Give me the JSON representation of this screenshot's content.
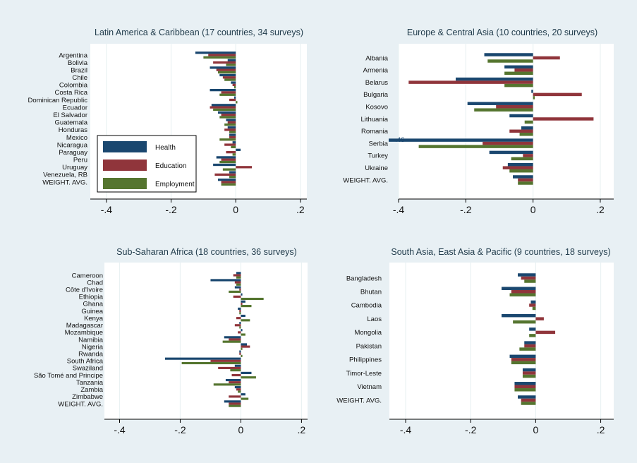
{
  "colors": {
    "health": "#1a476f",
    "education": "#90353b",
    "employment": "#55752f",
    "background": "#e8f0f4",
    "plot": "#ffffff",
    "grid": "#eaf2f3"
  },
  "legend": [
    {
      "label": "Health",
      "color": "#1a476f"
    },
    {
      "label": "Education",
      "color": "#90353b"
    },
    {
      "label": "Employment",
      "color": "#55752f"
    }
  ],
  "chart_data": [
    {
      "type": "bar",
      "orientation": "horizontal",
      "title": "Latin America & Caribbean (17 countries, 34 surveys)",
      "xlim": [
        -0.45,
        0.22
      ],
      "x_ticks": [
        -0.4,
        -0.2,
        0,
        0.2
      ],
      "x_tick_labels": [
        "-.4",
        "-.2",
        "0",
        ".2"
      ],
      "grid": true,
      "legend_position": "lower-left",
      "categories": [
        "Argentina",
        "Bolivia",
        "Brazil",
        "Chile",
        "Colombia",
        "Costa Rica",
        "Dominican Republic",
        "Ecuador",
        "El Salvador",
        "Guatemala",
        "Honduras",
        "Mexico",
        "Nicaragua",
        "Paraguay",
        "Peru",
        "Uruguay",
        "Venezuela, RB",
        "WEIGHT. AVG."
      ],
      "series": [
        {
          "name": "Health",
          "values": [
            -0.125,
            -0.025,
            -0.08,
            -0.05,
            -0.015,
            -0.08,
            -0.005,
            -0.075,
            -0.055,
            -0.03,
            -0.025,
            -0.02,
            -0.01,
            0.015,
            -0.06,
            -0.07,
            -0.02,
            -0.055
          ]
        },
        {
          "name": "Education",
          "values": [
            -0.085,
            -0.07,
            -0.06,
            -0.04,
            -0.01,
            -0.045,
            -0.02,
            -0.08,
            -0.045,
            -0.025,
            -0.035,
            -0.02,
            -0.035,
            -0.03,
            -0.045,
            0.05,
            -0.065,
            -0.045
          ]
        },
        {
          "name": "Employment",
          "values": [
            -0.1,
            -0.03,
            -0.055,
            -0.035,
            -0.005,
            -0.05,
            0.005,
            -0.07,
            -0.05,
            -0.035,
            -0.02,
            -0.05,
            -0.015,
            -0.01,
            -0.05,
            -0.04,
            -0.02,
            -0.045
          ]
        }
      ]
    },
    {
      "type": "bar",
      "orientation": "horizontal",
      "title": "Europe & Central Asia (10 countries, 20 surveys)",
      "xlim": [
        -0.4,
        0.24
      ],
      "x_ticks": [
        -0.4,
        -0.2,
        0,
        0.2
      ],
      "x_tick_labels": [
        "-.4",
        "-.2",
        "0",
        ".2"
      ],
      "grid": true,
      "annotations": [
        {
          "text": "-.46",
          "category": "Serbia"
        }
      ],
      "categories": [
        "Albania",
        "Armenia",
        "Belarus",
        "Bulgaria",
        "Kosovo",
        "Lithuania",
        "Romania",
        "Serbia",
        "Turkey",
        "Ukraine",
        "WEIGHT. AVG."
      ],
      "series": [
        {
          "name": "Health",
          "values": [
            -0.145,
            -0.085,
            -0.23,
            -0.005,
            -0.195,
            -0.07,
            -0.035,
            -0.46,
            -0.13,
            -0.075,
            -0.06
          ]
        },
        {
          "name": "Education",
          "values": [
            0.08,
            -0.055,
            -0.37,
            0.145,
            -0.11,
            0.18,
            -0.07,
            -0.15,
            -0.03,
            -0.09,
            -0.045
          ]
        },
        {
          "name": "Employment",
          "values": [
            -0.135,
            -0.085,
            -0.085,
            0.005,
            -0.175,
            -0.025,
            -0.04,
            -0.34,
            -0.065,
            -0.07,
            -0.045
          ]
        }
      ]
    },
    {
      "type": "bar",
      "orientation": "horizontal",
      "title": "Sub-Saharan Africa (18 countries, 36 surveys)",
      "xlim": [
        -0.45,
        0.22
      ],
      "x_ticks": [
        -0.4,
        -0.2,
        0,
        0.2
      ],
      "x_tick_labels": [
        "-.4",
        "-.2",
        "0",
        ".2"
      ],
      "grid": true,
      "categories": [
        "Cameroon",
        "Chad",
        "Côte d'Ivoire",
        "Ethiopia",
        "Ghana",
        "Guinea",
        "Kenya",
        "Madagascar",
        "Mozambique",
        "Namibia",
        "Nigeria",
        "Rwanda",
        "South Africa",
        "Swaziland",
        "São Tomé and Principe",
        "Tanzania",
        "Zambia",
        "Zimbabwe",
        "WEIGHT. AVG."
      ],
      "series": [
        {
          "name": "Health",
          "values": [
            -0.015,
            -0.1,
            -0.02,
            0.005,
            0.015,
            -0.01,
            0.015,
            -0.005,
            0.005,
            -0.055,
            0.02,
            -0.005,
            -0.25,
            -0.02,
            0.035,
            -0.05,
            -0.02,
            0.015,
            -0.055
          ]
        },
        {
          "name": "Education",
          "values": [
            -0.025,
            -0.02,
            -0.005,
            -0.025,
            0.005,
            -0.005,
            -0.015,
            -0.02,
            -0.01,
            -0.04,
            0.03,
            -0.005,
            -0.1,
            -0.075,
            -0.03,
            -0.04,
            -0.015,
            -0.04,
            -0.04
          ]
        },
        {
          "name": "Employment",
          "values": [
            -0.015,
            -0.015,
            -0.04,
            0.075,
            0.035,
            -0.005,
            0.03,
            -0.005,
            0.015,
            -0.06,
            0.005,
            0.005,
            -0.195,
            -0.035,
            0.05,
            -0.09,
            -0.01,
            0.025,
            -0.04
          ]
        }
      ]
    },
    {
      "type": "bar",
      "orientation": "horizontal",
      "title": "South Asia, East Asia & Pacific (9 countries, 18 surveys)",
      "xlim": [
        -0.45,
        0.24
      ],
      "x_ticks": [
        -0.4,
        -0.2,
        0,
        0.2
      ],
      "x_tick_labels": [
        "-.4",
        "-.2",
        "0",
        ".2"
      ],
      "grid": true,
      "categories": [
        "Bangladesh",
        "Bhutan",
        "Cambodia",
        "Laos",
        "Mongolia",
        "Pakistan",
        "Philippines",
        "Timor-Leste",
        "Vietnam",
        "WEIGHT. AVG."
      ],
      "series": [
        {
          "name": "Health",
          "values": [
            -0.055,
            -0.105,
            -0.015,
            -0.105,
            -0.02,
            -0.035,
            -0.08,
            -0.04,
            -0.065,
            -0.055
          ]
        },
        {
          "name": "Education",
          "values": [
            -0.045,
            -0.075,
            -0.02,
            0.025,
            0.06,
            -0.035,
            -0.075,
            -0.04,
            -0.065,
            -0.045
          ]
        },
        {
          "name": "Employment",
          "values": [
            -0.035,
            -0.08,
            -0.01,
            -0.07,
            -0.02,
            -0.05,
            -0.075,
            -0.04,
            -0.065,
            -0.045
          ]
        }
      ]
    }
  ]
}
